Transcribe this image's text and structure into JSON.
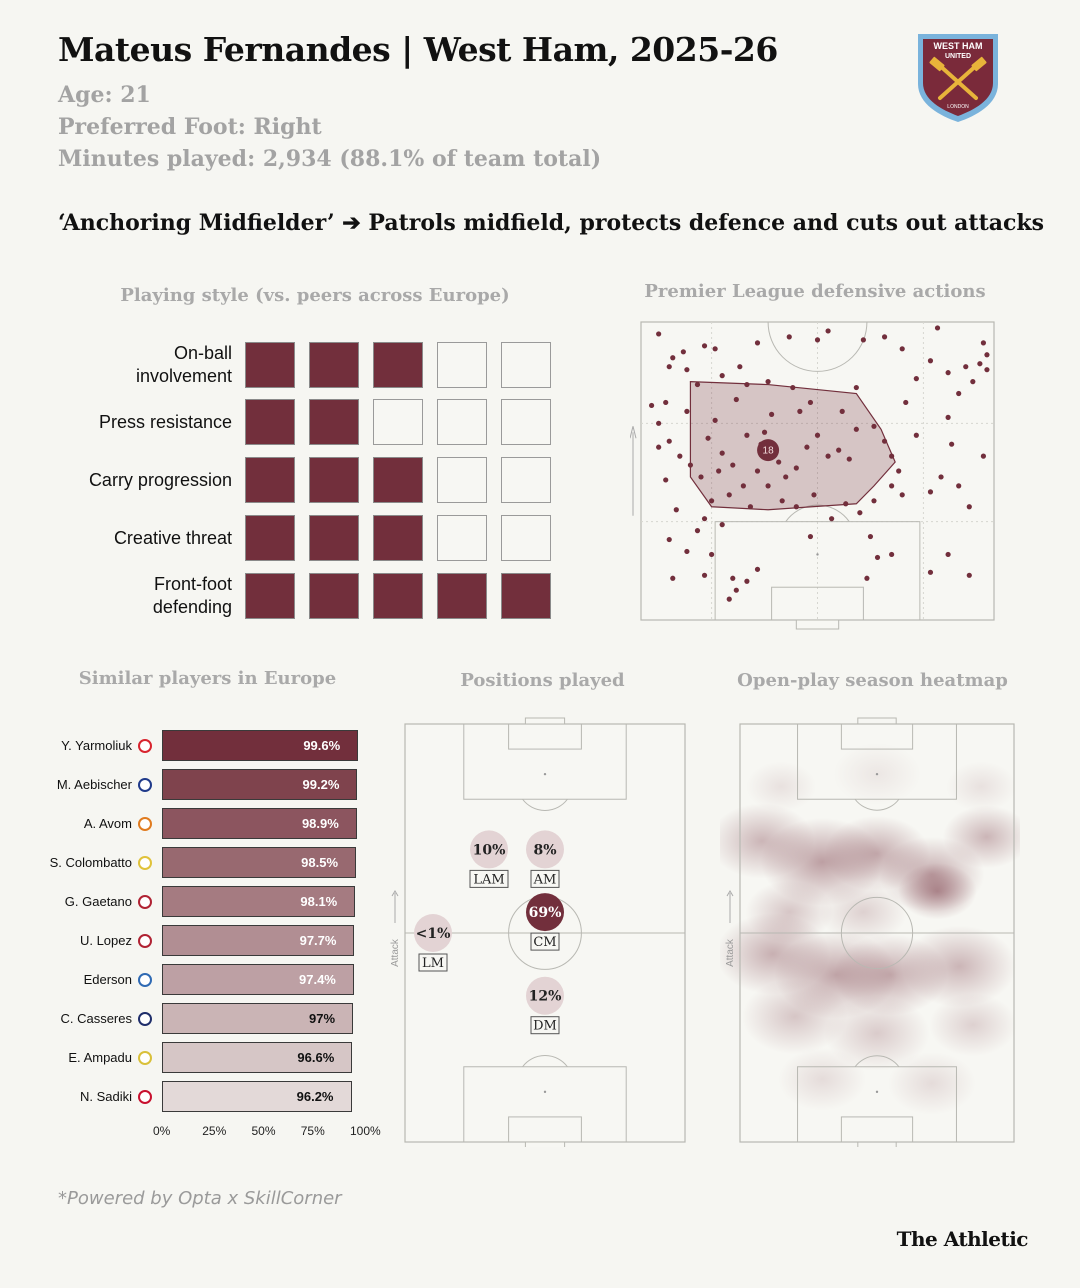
{
  "header": {
    "title": "Mateus Fernandes | West Ham, 2025-26",
    "age": "Age: 21",
    "foot": "Preferred Foot: Right",
    "minutes": "Minutes played: 2,934 (88.1% of team total)",
    "role": "‘Anchoring Midfielder’ ➔ Patrols midfield, protects defence and cuts out attacks",
    "crest_text": [
      "WEST HAM",
      "UNITED",
      "LONDON"
    ]
  },
  "colors": {
    "accent": "#722f3c",
    "background": "#f6f6f2",
    "muted": "#a3a3a3"
  },
  "chart_data": [
    {
      "type": "table",
      "title": "Playing style (vs. peers across Europe)",
      "max": 5,
      "rows": [
        {
          "label": "On-ball involvement",
          "lines": [
            "On-ball",
            "involvement"
          ],
          "value": 3
        },
        {
          "label": "Press resistance",
          "lines": [
            "Press resistance"
          ],
          "value": 2
        },
        {
          "label": "Carry progression",
          "lines": [
            "Carry progression"
          ],
          "value": 3
        },
        {
          "label": "Creative threat",
          "lines": [
            "Creative threat"
          ],
          "value": 3
        },
        {
          "label": "Front-foot defending",
          "lines": [
            "Front-foot",
            "defending"
          ],
          "value": 5
        }
      ]
    },
    {
      "type": "scatter",
      "title": "Premier League defensive actions",
      "average_position_label": "18",
      "direction": "attack upward",
      "points": [
        [
          0.05,
          0.04
        ],
        [
          0.18,
          0.08
        ],
        [
          0.33,
          0.07
        ],
        [
          0.08,
          0.15
        ],
        [
          0.13,
          0.16
        ],
        [
          0.21,
          0.09
        ],
        [
          0.23,
          0.18
        ],
        [
          0.3,
          0.21
        ],
        [
          0.5,
          0.06
        ],
        [
          0.63,
          0.06
        ],
        [
          0.69,
          0.05
        ],
        [
          0.74,
          0.09
        ],
        [
          0.84,
          0.02
        ],
        [
          0.87,
          0.17
        ],
        [
          0.92,
          0.15
        ],
        [
          0.96,
          0.14
        ],
        [
          0.98,
          0.11
        ],
        [
          0.97,
          0.07
        ],
        [
          0.9,
          0.24
        ],
        [
          0.87,
          0.32
        ],
        [
          0.9,
          0.55
        ],
        [
          0.93,
          0.62
        ],
        [
          0.97,
          0.45
        ],
        [
          0.82,
          0.13
        ],
        [
          0.75,
          0.27
        ],
        [
          0.53,
          0.03
        ],
        [
          0.42,
          0.05
        ],
        [
          0.12,
          0.1
        ],
        [
          0.09,
          0.12
        ],
        [
          0.16,
          0.21
        ],
        [
          0.07,
          0.27
        ],
        [
          0.05,
          0.34
        ],
        [
          0.13,
          0.3
        ],
        [
          0.08,
          0.4
        ],
        [
          0.11,
          0.45
        ],
        [
          0.14,
          0.48
        ],
        [
          0.17,
          0.52
        ],
        [
          0.21,
          0.33
        ],
        [
          0.27,
          0.26
        ],
        [
          0.3,
          0.38
        ],
        [
          0.34,
          0.41
        ],
        [
          0.37,
          0.31
        ],
        [
          0.33,
          0.5
        ],
        [
          0.29,
          0.55
        ],
        [
          0.25,
          0.58
        ],
        [
          0.2,
          0.6
        ],
        [
          0.18,
          0.66
        ],
        [
          0.16,
          0.7
        ],
        [
          0.23,
          0.44
        ],
        [
          0.39,
          0.47
        ],
        [
          0.41,
          0.52
        ],
        [
          0.44,
          0.49
        ],
        [
          0.47,
          0.42
        ],
        [
          0.5,
          0.38
        ],
        [
          0.53,
          0.45
        ],
        [
          0.56,
          0.43
        ],
        [
          0.59,
          0.46
        ],
        [
          0.61,
          0.36
        ],
        [
          0.57,
          0.3
        ],
        [
          0.66,
          0.35
        ],
        [
          0.69,
          0.4
        ],
        [
          0.71,
          0.45
        ],
        [
          0.73,
          0.5
        ],
        [
          0.71,
          0.55
        ],
        [
          0.66,
          0.6
        ],
        [
          0.62,
          0.64
        ],
        [
          0.58,
          0.61
        ],
        [
          0.54,
          0.66
        ],
        [
          0.49,
          0.58
        ],
        [
          0.44,
          0.62
        ],
        [
          0.4,
          0.6
        ],
        [
          0.36,
          0.55
        ],
        [
          0.31,
          0.62
        ],
        [
          0.26,
          0.48
        ],
        [
          0.22,
          0.5
        ],
        [
          0.45,
          0.3
        ],
        [
          0.48,
          0.27
        ],
        [
          0.43,
          0.22
        ],
        [
          0.36,
          0.2
        ],
        [
          0.28,
          0.15
        ],
        [
          0.19,
          0.39
        ],
        [
          0.05,
          0.42
        ],
        [
          0.03,
          0.28
        ],
        [
          0.07,
          0.53
        ],
        [
          0.1,
          0.63
        ],
        [
          0.08,
          0.73
        ],
        [
          0.13,
          0.77
        ],
        [
          0.2,
          0.78
        ],
        [
          0.09,
          0.86
        ],
        [
          0.18,
          0.85
        ],
        [
          0.26,
          0.86
        ],
        [
          0.33,
          0.83
        ],
        [
          0.3,
          0.87
        ],
        [
          0.27,
          0.9
        ],
        [
          0.25,
          0.93
        ],
        [
          0.65,
          0.72
        ],
        [
          0.67,
          0.79
        ],
        [
          0.64,
          0.86
        ],
        [
          0.71,
          0.78
        ],
        [
          0.82,
          0.84
        ],
        [
          0.78,
          0.38
        ],
        [
          0.74,
          0.58
        ],
        [
          0.82,
          0.57
        ],
        [
          0.88,
          0.41
        ],
        [
          0.93,
          0.85
        ],
        [
          0.87,
          0.78
        ],
        [
          0.85,
          0.52
        ],
        [
          0.94,
          0.2
        ],
        [
          0.98,
          0.16
        ],
        [
          0.61,
          0.22
        ],
        [
          0.78,
          0.19
        ],
        [
          0.35,
          0.37
        ],
        [
          0.23,
          0.68
        ],
        [
          0.48,
          0.72
        ]
      ],
      "hull": [
        [
          0.14,
          0.2
        ],
        [
          0.36,
          0.21
        ],
        [
          0.61,
          0.24
        ],
        [
          0.68,
          0.36
        ],
        [
          0.72,
          0.47
        ],
        [
          0.66,
          0.55
        ],
        [
          0.61,
          0.61
        ],
        [
          0.36,
          0.63
        ],
        [
          0.2,
          0.62
        ],
        [
          0.14,
          0.52
        ],
        [
          0.14,
          0.34
        ]
      ],
      "average_position": [
        0.36,
        0.43
      ]
    },
    {
      "type": "bar",
      "title": "Similar players in Europe",
      "categories": [
        "Y. Yarmoliuk",
        "M. Aebischer",
        "A. Avom",
        "S. Colombatto",
        "G. Gaetano",
        "U. Lopez",
        "Ederson",
        "C. Casseres",
        "E. Ampadu",
        "N. Sadiki"
      ],
      "values": [
        99.6,
        99.2,
        98.9,
        98.5,
        98.1,
        97.7,
        97.4,
        97,
        96.6,
        96.2
      ],
      "labels": [
        "99.6%",
        "99.2%",
        "98.9%",
        "98.5%",
        "98.1%",
        "97.7%",
        "97.4%",
        "97%",
        "96.6%",
        "96.2%"
      ],
      "badge_colors": [
        "#d8242e",
        "#1f3a8a",
        "#e07b1f",
        "#e0c23a",
        "#b02233",
        "#b02233",
        "#2f6ab4",
        "#1f2e6b",
        "#d9c03a",
        "#c8102e"
      ],
      "xlim": [
        0,
        100
      ],
      "xticks": [
        "0%",
        "25%",
        "50%",
        "75%",
        "100%"
      ]
    },
    {
      "type": "scatter",
      "title": "Positions played",
      "axis_label": "Attack",
      "positions": [
        {
          "label": "LAM",
          "share": 10,
          "text": "10%",
          "x": 0.3,
          "y": 0.3
        },
        {
          "label": "AM",
          "share": 8,
          "text": "8%",
          "x": 0.5,
          "y": 0.3
        },
        {
          "label": "CM",
          "share": 69,
          "text": "69%",
          "x": 0.5,
          "y": 0.45
        },
        {
          "label": "LM",
          "share": 1,
          "text": "<1%",
          "x": 0.1,
          "y": 0.5
        },
        {
          "label": "DM",
          "share": 12,
          "text": "12%",
          "x": 0.5,
          "y": 0.65
        }
      ]
    },
    {
      "type": "heatmap",
      "title": "Open-play season heatmap",
      "axis_label": "Attack",
      "blobs": [
        [
          0.08,
          0.28,
          0.12,
          0.6
        ],
        [
          0.3,
          0.33,
          0.14,
          0.8
        ],
        [
          0.5,
          0.31,
          0.12,
          0.7
        ],
        [
          0.7,
          0.36,
          0.12,
          0.7
        ],
        [
          0.72,
          0.4,
          0.09,
          0.85
        ],
        [
          0.9,
          0.27,
          0.1,
          0.6
        ],
        [
          0.18,
          0.45,
          0.1,
          0.45
        ],
        [
          0.45,
          0.45,
          0.1,
          0.35
        ],
        [
          0.12,
          0.55,
          0.13,
          0.65
        ],
        [
          0.35,
          0.6,
          0.14,
          0.75
        ],
        [
          0.55,
          0.6,
          0.13,
          0.7
        ],
        [
          0.8,
          0.58,
          0.13,
          0.6
        ],
        [
          0.2,
          0.7,
          0.12,
          0.45
        ],
        [
          0.5,
          0.74,
          0.12,
          0.4
        ],
        [
          0.85,
          0.72,
          0.1,
          0.35
        ],
        [
          0.3,
          0.85,
          0.1,
          0.25
        ],
        [
          0.7,
          0.86,
          0.1,
          0.25
        ],
        [
          0.5,
          0.12,
          0.1,
          0.15
        ],
        [
          0.15,
          0.15,
          0.08,
          0.2
        ],
        [
          0.88,
          0.15,
          0.08,
          0.2
        ]
      ]
    }
  ],
  "footer": {
    "credit": "*Powered by Opta x SkillCorner",
    "brand": "The Athletic"
  }
}
